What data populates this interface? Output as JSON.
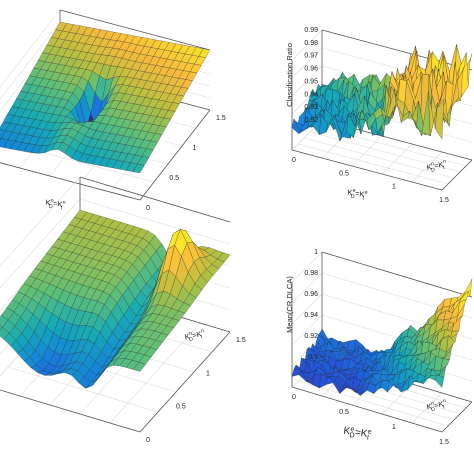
{
  "colors": {
    "low": "#3b2d8f",
    "mid": "#22a386",
    "high": "#fce725",
    "peak": "#f4b640"
  },
  "chart_data": [
    {
      "type": "surface",
      "panel": "top-left",
      "ylabel_html": "K_D^n = K_I^n",
      "y_label": {
        "base": "K",
        "sub": "D",
        "sup": "n",
        "eq": "=",
        "base2": "K",
        "sub2": "I",
        "sup2": "n"
      },
      "x_ticks": [
        "0",
        "0.5",
        "1",
        "1.5"
      ],
      "y_ticks": [],
      "z_ticks": [],
      "zlabel": "",
      "shape": "ridge-with-dip",
      "z_range": [
        0,
        1
      ]
    },
    {
      "type": "surface",
      "panel": "top-right",
      "zlabel": "Classification Ratio",
      "z_ticks": [
        "0.92",
        "0.93",
        "0.94",
        "0.95",
        "0.96",
        "0.97",
        "0.98",
        "0.99"
      ],
      "z_range": [
        0.92,
        0.99
      ],
      "y_ticks": [
        "0",
        "0.5",
        "1",
        "1.5"
      ],
      "x_ticks": [],
      "y_label": {
        "base": "K",
        "sub": "D",
        "sup": "e",
        "eq": "=",
        "base2": "K",
        "sub2": "I",
        "sup2": "e"
      },
      "x_label": {
        "base": "K",
        "sub": "D",
        "sup": "n",
        "eq": "=",
        "base2": "K",
        "sub2": "I",
        "sup2": "n"
      },
      "shape": "noisy-plateau"
    },
    {
      "type": "surface",
      "panel": "bottom-left",
      "x_ticks": [
        "0",
        "0.5",
        "1",
        "1.5"
      ],
      "y_ticks": [],
      "z_ticks": [],
      "zlabel": "",
      "x_label": {
        "base": "K",
        "sub": "D",
        "sup": "n",
        "eq": "=",
        "base2": "K",
        "sub2": "I",
        "sup2": "n"
      },
      "shape": "saddle-with-peak",
      "z_range": [
        0,
        1
      ]
    },
    {
      "type": "surface",
      "panel": "bottom-right",
      "zlabel": "Mean(CR,DI,CA)",
      "z_ticks": [
        "0.9",
        "0.92",
        "0.94",
        "0.96",
        "0.98",
        "1"
      ],
      "z_range": [
        0.9,
        1.0
      ],
      "y_ticks": [
        "0",
        "0.5",
        "1",
        "1.5"
      ],
      "x_ticks": [],
      "y_label": {
        "base": "K",
        "sub": "D",
        "sup": "e",
        "eq": "=",
        "base2": "K",
        "sub2": "I",
        "sup2": "e"
      },
      "x_label": {
        "base": "K",
        "sub": "D",
        "sup": "n",
        "eq": "=",
        "base2": "K",
        "sub2": "I",
        "sup2": "n"
      },
      "shape": "rising-wedge"
    }
  ]
}
